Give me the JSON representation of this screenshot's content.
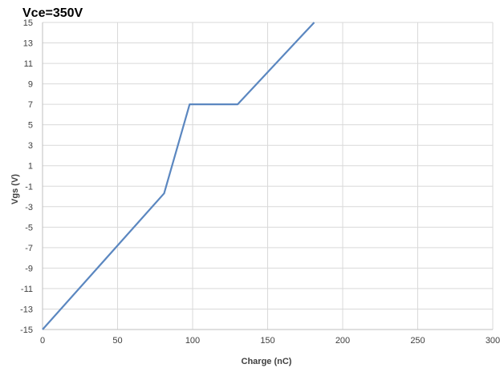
{
  "chart_data": {
    "type": "line",
    "title": "Vce=350V",
    "xlabel": "Charge (nC)",
    "ylabel": "Vgs (V)",
    "xlim": [
      0,
      300
    ],
    "ylim": [
      -15,
      15
    ],
    "x_ticks": [
      0,
      50,
      100,
      150,
      200,
      250,
      300
    ],
    "y_ticks": [
      -15,
      -13,
      -11,
      -9,
      -7,
      -5,
      -3,
      -1,
      1,
      3,
      5,
      7,
      9,
      11,
      13,
      15
    ],
    "grid": true,
    "legend": "none",
    "series": [
      {
        "color": "#5b87c0",
        "x": [
          0,
          81,
          98,
          130,
          181
        ],
        "y": [
          -15,
          -1.7,
          7,
          7,
          15
        ]
      }
    ]
  }
}
